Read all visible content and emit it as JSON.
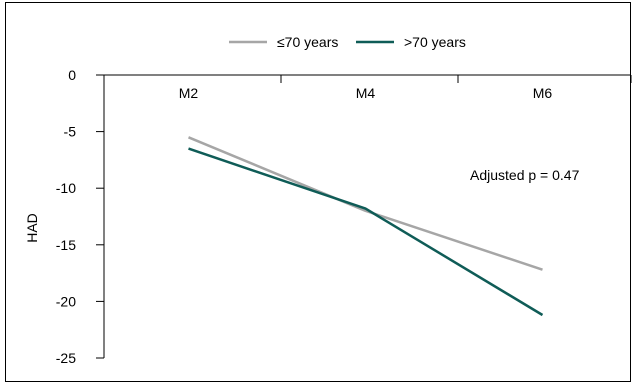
{
  "chart_data": {
    "type": "line",
    "categories": [
      "M2",
      "M4",
      "M6"
    ],
    "series": [
      {
        "name": "≤70 years",
        "values": [
          -5.5,
          -12.0,
          -17.2
        ],
        "color": "#a6a6a6"
      },
      {
        "name": ">70 years",
        "values": [
          -6.5,
          -11.8,
          -21.2
        ],
        "color": "#0f5c57"
      }
    ],
    "ylabel": "HAD",
    "xlabel": "",
    "ylim": [
      -25,
      0
    ],
    "yticks": [
      0,
      -5,
      -10,
      -15,
      -20,
      -25
    ],
    "annotation": "Adjusted p = 0.47",
    "legend_position": "top-center",
    "grid": false
  }
}
